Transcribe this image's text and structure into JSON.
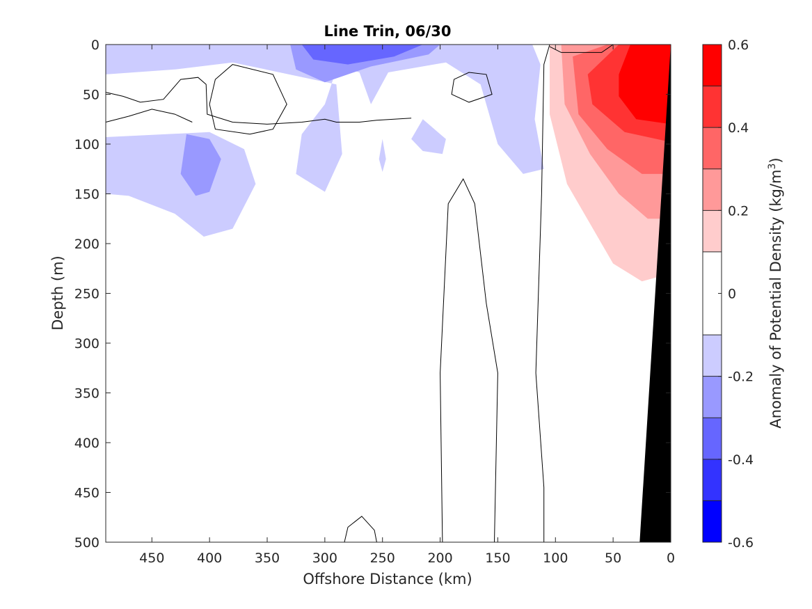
{
  "chart_data": {
    "type": "heatmap",
    "subtype": "filled-contour section",
    "title": "Line Trin, 06/30",
    "xlabel": "Offshore Distance (km)",
    "ylabel": "Depth (m)",
    "xlim": [
      490,
      0
    ],
    "x_reversed": true,
    "ylim": [
      0,
      500
    ],
    "y_reversed": true,
    "x_ticks": [
      "450",
      "400",
      "350",
      "300",
      "250",
      "200",
      "150",
      "100",
      "50",
      "0"
    ],
    "y_ticks": [
      "0",
      "50",
      "100",
      "150",
      "200",
      "250",
      "300",
      "350",
      "400",
      "450",
      "500"
    ],
    "colorbar": {
      "label_main": "Anomaly of Potential Density (kg/m",
      "label_sup": "3",
      "label_end": ")",
      "range": [
        -0.6,
        0.6
      ],
      "ticks": [
        "0.6",
        "0.4",
        "0.2",
        "0",
        "-0.2",
        "-0.4",
        "-0.6"
      ],
      "tick_values": [
        0.6,
        0.4,
        0.2,
        0,
        -0.2,
        -0.4,
        -0.6
      ],
      "levels": [
        -0.6,
        -0.5,
        -0.4,
        -0.3,
        -0.2,
        -0.1,
        0.1,
        0.2,
        0.3,
        0.4,
        0.5,
        0.6
      ],
      "colors": [
        "#0000ff",
        "#3333ff",
        "#6666ff",
        "#9999ff",
        "#ccccff",
        "#ffffff",
        "#ffcccc",
        "#ff9999",
        "#ff6666",
        "#ff3333",
        "#ff0000"
      ]
    },
    "bathymetry": {
      "color": "#000000",
      "outline": [
        [
          0,
          0
        ],
        [
          0,
          500
        ],
        [
          27,
          500
        ]
      ]
    },
    "regions": [
      {
        "level": -0.1,
        "color": "#ccccff",
        "points": [
          [
            490,
            0
          ],
          [
            300,
            0
          ],
          [
            290,
            25
          ],
          [
            300,
            60
          ],
          [
            320,
            90
          ],
          [
            325,
            130
          ],
          [
            300,
            148
          ],
          [
            285,
            110
          ],
          [
            290,
            40
          ],
          [
            380,
            18
          ],
          [
            430,
            25
          ],
          [
            490,
            30
          ]
        ]
      },
      {
        "level": -0.1,
        "color": "#ccccff",
        "points": [
          [
            490,
            93
          ],
          [
            400,
            88
          ],
          [
            370,
            105
          ],
          [
            360,
            140
          ],
          [
            380,
            185
          ],
          [
            405,
            193
          ],
          [
            430,
            170
          ],
          [
            470,
            152
          ],
          [
            490,
            150
          ]
        ]
      },
      {
        "level": -0.1,
        "color": "#ccccff",
        "points": [
          [
            300,
            0
          ],
          [
            120,
            0
          ],
          [
            113,
            20
          ],
          [
            118,
            75
          ],
          [
            110,
            125
          ],
          [
            128,
            130
          ],
          [
            150,
            100
          ],
          [
            165,
            40
          ],
          [
            195,
            18
          ],
          [
            245,
            28
          ],
          [
            260,
            60
          ],
          [
            270,
            28
          ],
          [
            300,
            18
          ]
        ]
      },
      {
        "level": -0.1,
        "color": "#ccccff",
        "points": [
          [
            215,
            75
          ],
          [
            195,
            95
          ],
          [
            198,
            110
          ],
          [
            215,
            107
          ],
          [
            225,
            95
          ]
        ]
      },
      {
        "level": -0.1,
        "color": "#ccccff",
        "points": [
          [
            250,
            95
          ],
          [
            247,
            115
          ],
          [
            250,
            128
          ],
          [
            253,
            115
          ]
        ]
      },
      {
        "level": -0.2,
        "color": "#9999ff",
        "points": [
          [
            420,
            90
          ],
          [
            400,
            95
          ],
          [
            390,
            115
          ],
          [
            400,
            148
          ],
          [
            412,
            152
          ],
          [
            425,
            130
          ]
        ]
      },
      {
        "level": -0.2,
        "color": "#9999ff",
        "points": [
          [
            330,
            0
          ],
          [
            200,
            0
          ],
          [
            210,
            10
          ],
          [
            260,
            22
          ],
          [
            300,
            38
          ],
          [
            325,
            25
          ]
        ]
      },
      {
        "level": -0.3,
        "color": "#6666ff",
        "points": [
          [
            320,
            0
          ],
          [
            215,
            0
          ],
          [
            240,
            12
          ],
          [
            280,
            20
          ],
          [
            310,
            15
          ]
        ]
      },
      {
        "level": -0.2,
        "color": "#9999ff",
        "points": [
          [
            95,
            0
          ],
          [
            70,
            0
          ],
          [
            75,
            8
          ],
          [
            88,
            7
          ]
        ]
      },
      {
        "level": -0.3,
        "color": "#6666ff",
        "points": [
          [
            90,
            0
          ],
          [
            75,
            0
          ],
          [
            80,
            5
          ]
        ]
      },
      {
        "level": 0.1,
        "color": "#ffcccc",
        "points": [
          [
            105,
            0
          ],
          [
            0,
            0
          ],
          [
            0,
            230
          ],
          [
            25,
            238
          ],
          [
            50,
            220
          ],
          [
            70,
            180
          ],
          [
            90,
            140
          ],
          [
            105,
            70
          ]
        ]
      },
      {
        "level": 0.2,
        "color": "#ff9999",
        "points": [
          [
            95,
            0
          ],
          [
            0,
            0
          ],
          [
            0,
            175
          ],
          [
            20,
            175
          ],
          [
            45,
            150
          ],
          [
            70,
            110
          ],
          [
            92,
            60
          ]
        ]
      },
      {
        "level": 0.3,
        "color": "#ff6666",
        "points": [
          [
            85,
            12
          ],
          [
            55,
            0
          ],
          [
            0,
            0
          ],
          [
            0,
            130
          ],
          [
            25,
            130
          ],
          [
            55,
            105
          ],
          [
            80,
            70
          ]
        ]
      },
      {
        "level": 0.4,
        "color": "#ff3333",
        "points": [
          [
            72,
            30
          ],
          [
            45,
            0
          ],
          [
            0,
            0
          ],
          [
            0,
            98
          ],
          [
            40,
            88
          ],
          [
            68,
            60
          ]
        ]
      },
      {
        "level": 0.5,
        "color": "#ff0000",
        "points": [
          [
            45,
            30
          ],
          [
            35,
            0
          ],
          [
            0,
            0
          ],
          [
            0,
            80
          ],
          [
            30,
            75
          ],
          [
            45,
            52
          ]
        ]
      }
    ],
    "zero_contours": [
      {
        "closed": false,
        "points": [
          [
            490,
            48
          ],
          [
            475,
            52
          ],
          [
            460,
            58
          ],
          [
            440,
            55
          ],
          [
            425,
            35
          ],
          [
            410,
            33
          ],
          [
            403,
            40
          ],
          [
            402,
            70
          ],
          [
            380,
            78
          ],
          [
            350,
            80
          ],
          [
            320,
            78
          ],
          [
            300,
            75
          ],
          [
            290,
            78
          ],
          [
            270,
            78
          ],
          [
            255,
            76
          ],
          [
            225,
            74
          ]
        ]
      },
      {
        "closed": false,
        "points": [
          [
            490,
            78
          ],
          [
            470,
            72
          ],
          [
            450,
            65
          ],
          [
            430,
            70
          ],
          [
            415,
            78
          ]
        ]
      },
      {
        "closed": true,
        "points": [
          [
            380,
            20
          ],
          [
            345,
            30
          ],
          [
            333,
            60
          ],
          [
            345,
            85
          ],
          [
            365,
            90
          ],
          [
            395,
            85
          ],
          [
            400,
            60
          ],
          [
            395,
            35
          ]
        ]
      },
      {
        "closed": true,
        "points": [
          [
            175,
            28
          ],
          [
            160,
            30
          ],
          [
            155,
            50
          ],
          [
            175,
            58
          ],
          [
            190,
            50
          ],
          [
            188,
            35
          ]
        ]
      },
      {
        "closed": false,
        "points": [
          [
            110,
            500
          ],
          [
            110,
            445
          ],
          [
            117,
            330
          ],
          [
            112,
            150
          ],
          [
            110,
            20
          ],
          [
            105,
            0
          ]
        ]
      },
      {
        "closed": false,
        "points": [
          [
            105,
            2
          ],
          [
            95,
            8
          ],
          [
            60,
            8
          ],
          [
            50,
            0
          ]
        ]
      },
      {
        "closed": false,
        "points": [
          [
            198,
            500
          ],
          [
            200,
            330
          ],
          [
            193,
            160
          ],
          [
            180,
            135
          ],
          [
            170,
            160
          ],
          [
            160,
            260
          ],
          [
            150,
            330
          ],
          [
            153,
            500
          ]
        ]
      },
      {
        "closed": false,
        "points": [
          [
            283,
            500
          ],
          [
            280,
            485
          ],
          [
            268,
            474
          ],
          [
            257,
            488
          ],
          [
            255,
            500
          ]
        ]
      }
    ]
  }
}
